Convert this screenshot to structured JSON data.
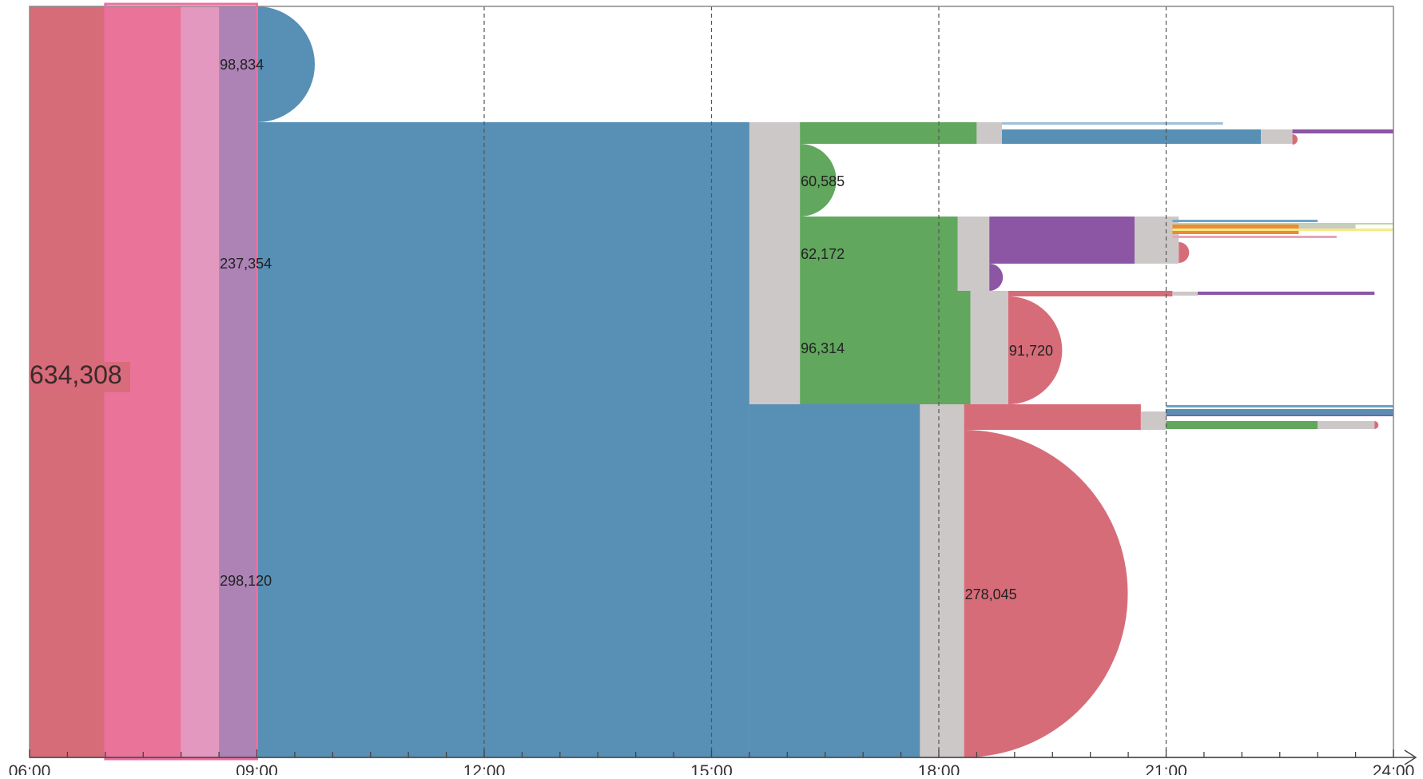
{
  "chart_data": {
    "type": "flow-timeline",
    "xaxis": {
      "range": [
        "06:00",
        "24:00"
      ],
      "tick_labels": [
        "06:00",
        "09:00",
        "12:00",
        "15:00",
        "18:00",
        "21:00",
        "24:00"
      ],
      "minor_tick_interval_minutes": 30,
      "gridlines": [
        "12:00",
        "15:00",
        "18:00",
        "21:00"
      ],
      "gridline_style": "dashed"
    },
    "root": {
      "label": "634,308",
      "value": 634308,
      "start": "06:00",
      "color": "#d76c79"
    },
    "colors": {
      "red": "#d76c79",
      "pink": "#e97798",
      "light_pink": "#e0a6c8",
      "lavender": "#9c88bc",
      "blue": "#578fb5",
      "green": "#61a75d",
      "gray": "#ccc8c8",
      "purple": "#8c56a4",
      "orange": "#f08933",
      "highlight": "#ec6ea0"
    },
    "highlight_window": {
      "start": "07:00",
      "end": "09:00"
    },
    "value_labels": [
      {
        "text": "98,834",
        "value": 98834,
        "time": "08:30"
      },
      {
        "text": "237,354",
        "value": 237354,
        "time": "08:30"
      },
      {
        "text": "298,120",
        "value": 298120,
        "time": "08:30"
      },
      {
        "text": "60,585",
        "value": 60585,
        "time": "16:10"
      },
      {
        "text": "62,172",
        "value": 62172,
        "time": "16:10"
      },
      {
        "text": "96,314",
        "value": 96314,
        "time": "16:10"
      },
      {
        "text": "91,720",
        "value": 91720,
        "time": "18:55"
      },
      {
        "text": "278,045",
        "value": 278045,
        "time": "18:20"
      }
    ]
  }
}
